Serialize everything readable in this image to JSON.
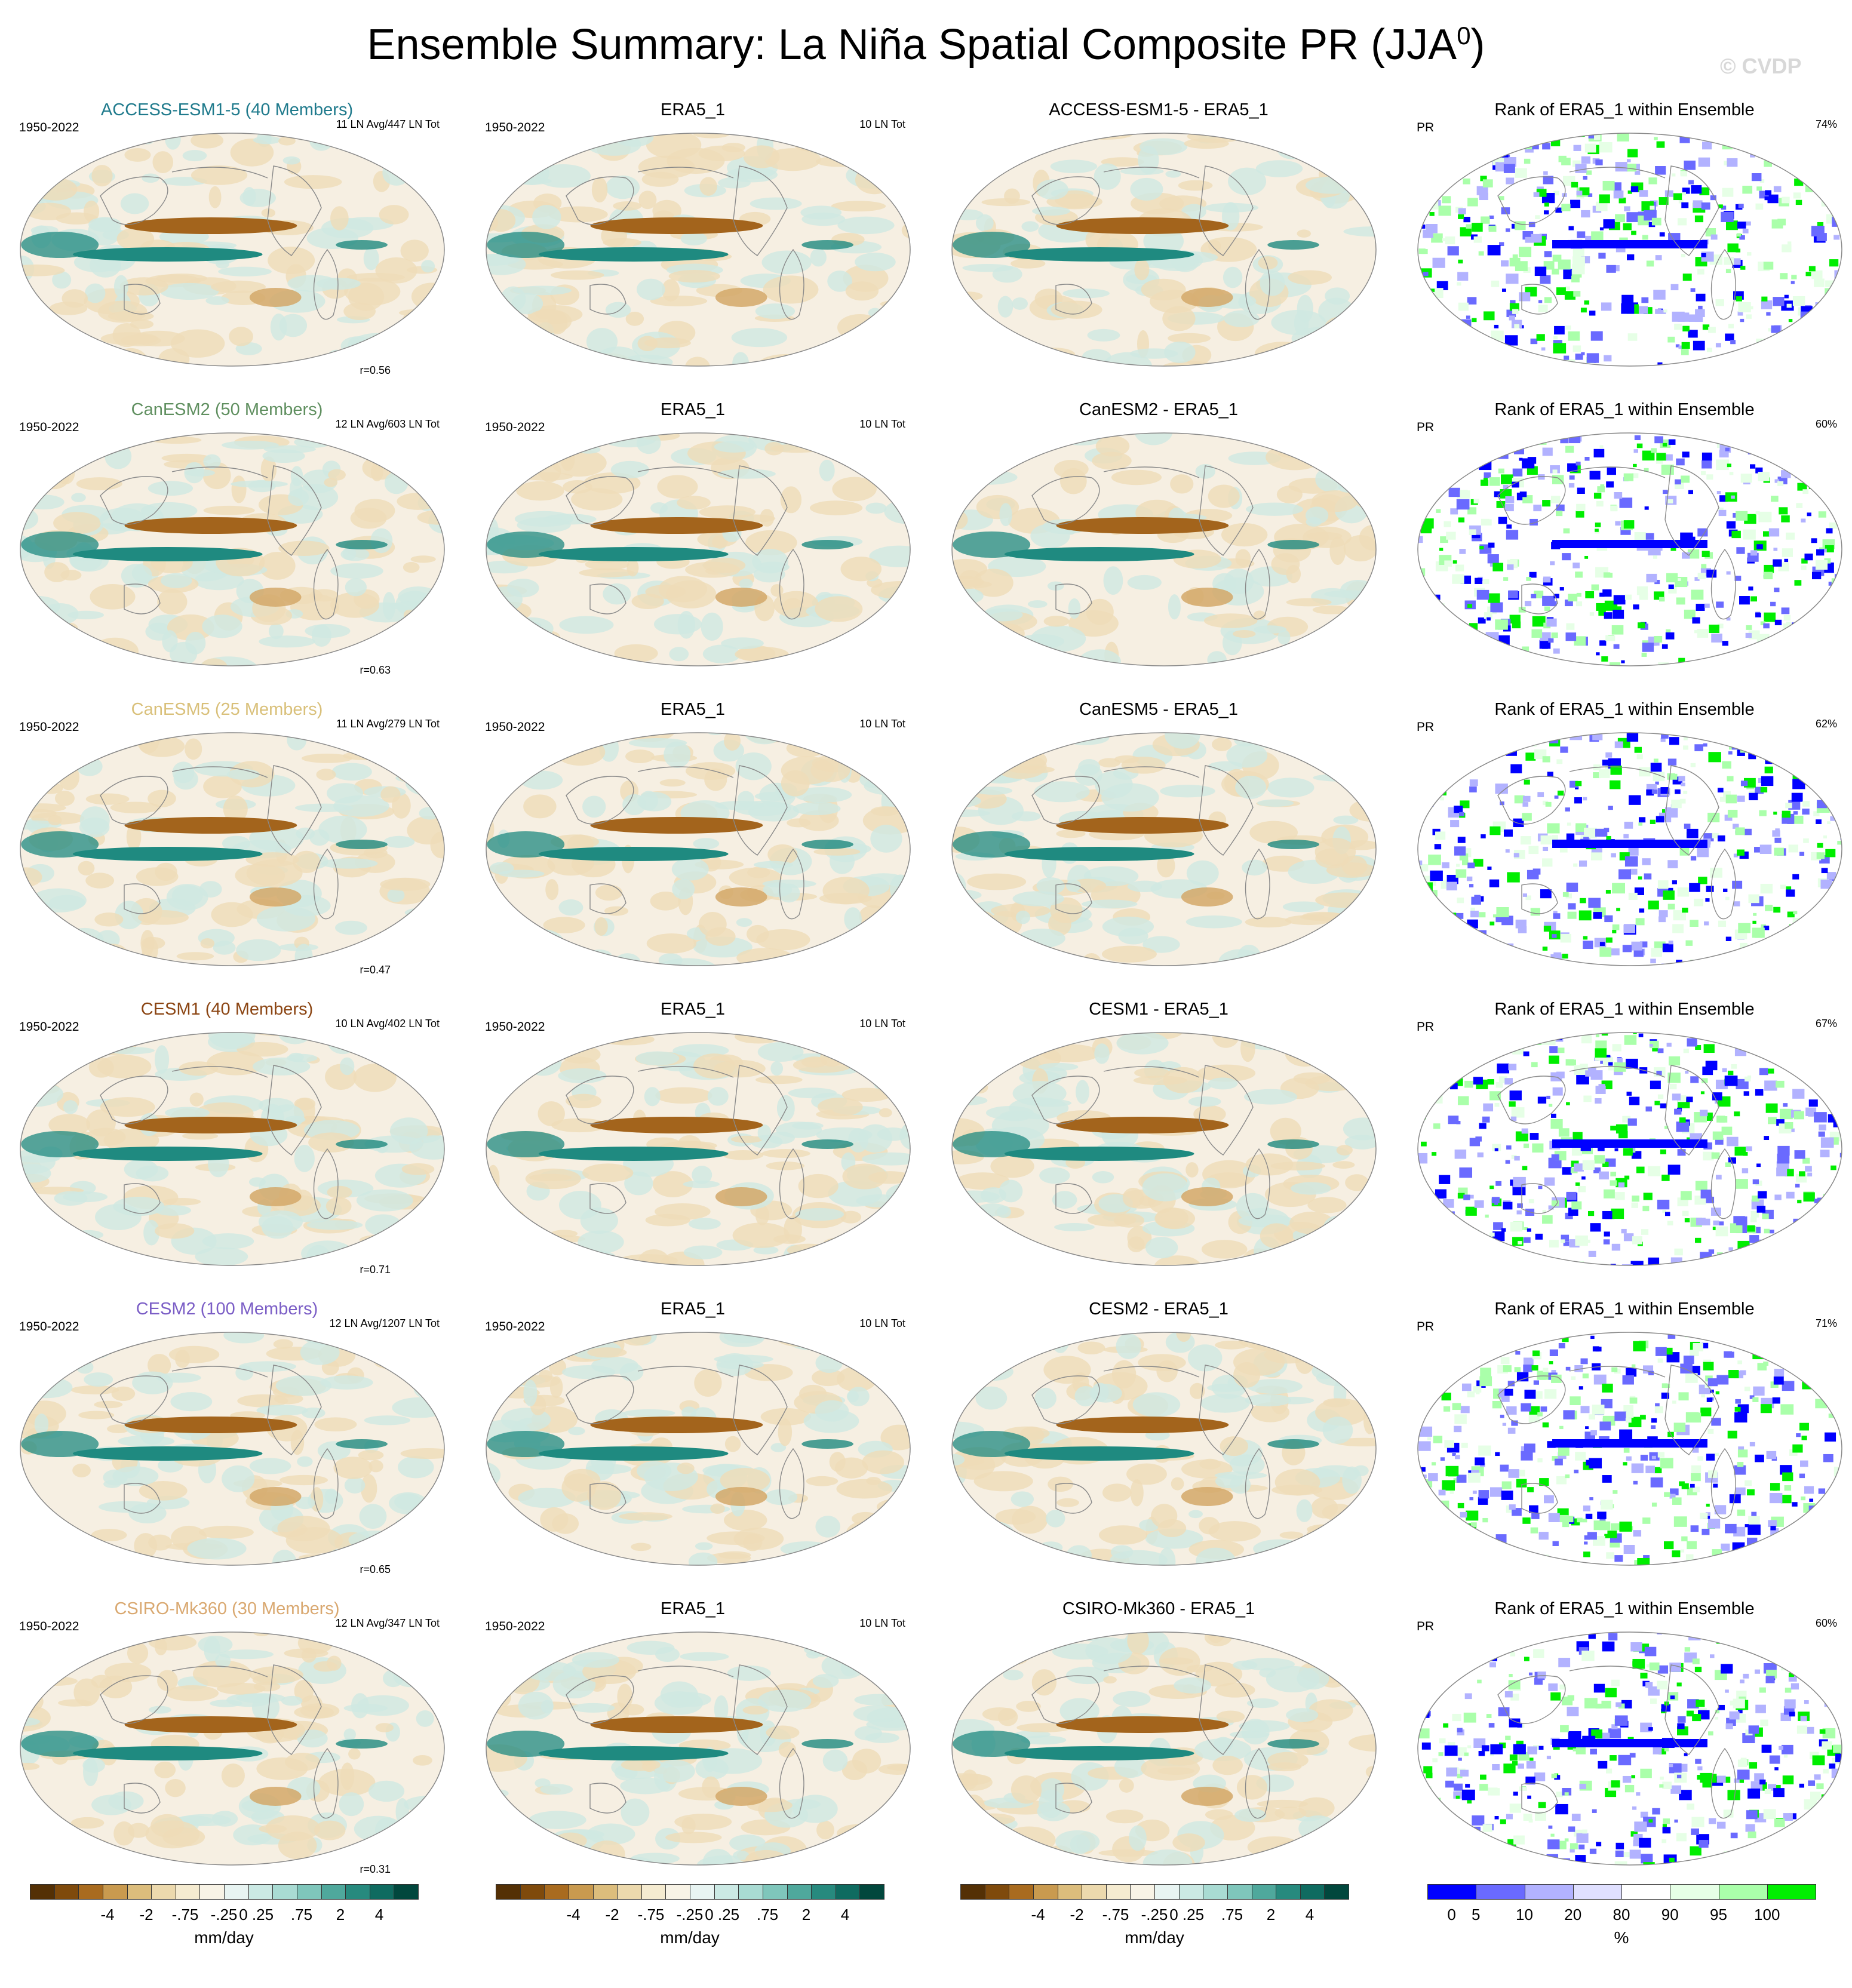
{
  "title": "Ensemble Summary: La Niña Spatial Composite PR (JJA",
  "title_sup": "0",
  "title_close": ")",
  "watermark": "© CVDP",
  "rows": [
    {
      "model_title": "ACCESS-ESM1-5 (40 Members)",
      "model_color": "#1f7a8c",
      "years": "1950-2022",
      "counts": "11 LN Avg/447 LN Tot",
      "r": "r=0.56",
      "obs_title": "ERA5_1",
      "obs_years": "1950-2022",
      "obs_counts": "10 LN Tot",
      "diff_title": "ACCESS-ESM1-5 - ERA5_1",
      "rank_title": "Rank of ERA5_1 within Ensemble",
      "rank_var": "PR",
      "rank_pct": "74%"
    },
    {
      "model_title": "CanESM2 (50 Members)",
      "model_color": "#5f8f5f",
      "years": "1950-2022",
      "counts": "12 LN Avg/603 LN Tot",
      "r": "r=0.63",
      "obs_title": "ERA5_1",
      "obs_years": "1950-2022",
      "obs_counts": "10 LN Tot",
      "diff_title": "CanESM2 - ERA5_1",
      "rank_title": "Rank of ERA5_1 within Ensemble",
      "rank_var": "PR",
      "rank_pct": "60%"
    },
    {
      "model_title": "CanESM5 (25 Members)",
      "model_color": "#d9c07a",
      "years": "1950-2022",
      "counts": "11 LN Avg/279 LN Tot",
      "r": "r=0.47",
      "obs_title": "ERA5_1",
      "obs_years": "1950-2022",
      "obs_counts": "10 LN Tot",
      "diff_title": "CanESM5 - ERA5_1",
      "rank_title": "Rank of ERA5_1 within Ensemble",
      "rank_var": "PR",
      "rank_pct": "62%"
    },
    {
      "model_title": "CESM1 (40 Members)",
      "model_color": "#8b4513",
      "years": "1950-2022",
      "counts": "10 LN Avg/402 LN Tot",
      "r": "r=0.71",
      "obs_title": "ERA5_1",
      "obs_years": "1950-2022",
      "obs_counts": "10 LN Tot",
      "diff_title": "CESM1 - ERA5_1",
      "rank_title": "Rank of ERA5_1 within Ensemble",
      "rank_var": "PR",
      "rank_pct": "67%"
    },
    {
      "model_title": "CESM2 (100 Members)",
      "model_color": "#7b5ec6",
      "years": "1950-2022",
      "counts": "12 LN Avg/1207 LN Tot",
      "r": "r=0.65",
      "obs_title": "ERA5_1",
      "obs_years": "1950-2022",
      "obs_counts": "10 LN Tot",
      "diff_title": "CESM2 - ERA5_1",
      "rank_title": "Rank of ERA5_1 within Ensemble",
      "rank_var": "PR",
      "rank_pct": "71%"
    },
    {
      "model_title": "CSIRO-Mk360 (30 Members)",
      "model_color": "#d9a870",
      "years": "1950-2022",
      "counts": "12 LN Avg/347 LN Tot",
      "r": "r=0.31",
      "obs_title": "ERA5_1",
      "obs_years": "1950-2022",
      "obs_counts": "10 LN Tot",
      "diff_title": "CSIRO-Mk360 - ERA5_1",
      "rank_title": "Rank of ERA5_1 within Ensemble",
      "rank_var": "PR",
      "rank_pct": "60%"
    }
  ],
  "colorbar_brbg": {
    "labels": [
      "-4",
      "-2",
      "-.75",
      "-.25",
      "0",
      ".25",
      ".75",
      "2",
      "4"
    ],
    "units": "mm/day",
    "colors": [
      "#543005",
      "#7f4a0c",
      "#a96b1f",
      "#c99a4f",
      "#dcbd7c",
      "#ecd9ad",
      "#f5ebd0",
      "#f8f3e6",
      "#e8f4f2",
      "#cbe9e4",
      "#a9dbd3",
      "#7fc6bb",
      "#4fa89c",
      "#278a7e",
      "#0f6b60",
      "#01473d"
    ],
    "pattern_colors": {
      "pos": "#1f8a80",
      "neg": "#a3641c",
      "bg": "#f6efe2"
    }
  },
  "colorbar_rank": {
    "labels": [
      "0",
      "5",
      "10",
      "20",
      "80",
      "90",
      "95",
      "100"
    ],
    "units": "%",
    "colors": [
      "#0000ff",
      "#6a6aff",
      "#b2b2ff",
      "#e0e0ff",
      "#ffffff",
      "#e6ffe6",
      "#aaffaa",
      "#00ee00"
    ]
  }
}
